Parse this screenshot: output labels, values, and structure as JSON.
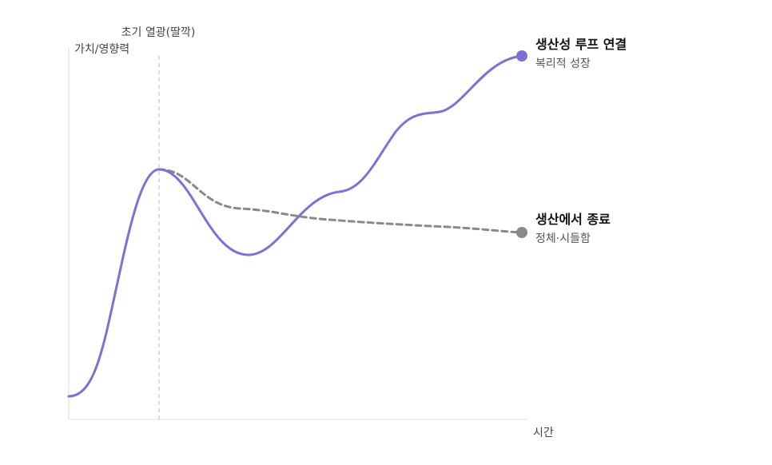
{
  "axes": {
    "y_label": "가치/영향력",
    "x_label": "시간"
  },
  "marker": {
    "label": "초기 열광(딸깍)"
  },
  "curves": {
    "loop": {
      "title": "생산성 루프 연결",
      "subtitle": "복리적 성장",
      "color": "#7b72d6"
    },
    "stop": {
      "title": "생산에서 종료",
      "subtitle": "정체·시들함",
      "color": "#8a8a85"
    }
  },
  "colors": {
    "axis": "#dcdcdc",
    "guide": "#bbbbbb"
  }
}
